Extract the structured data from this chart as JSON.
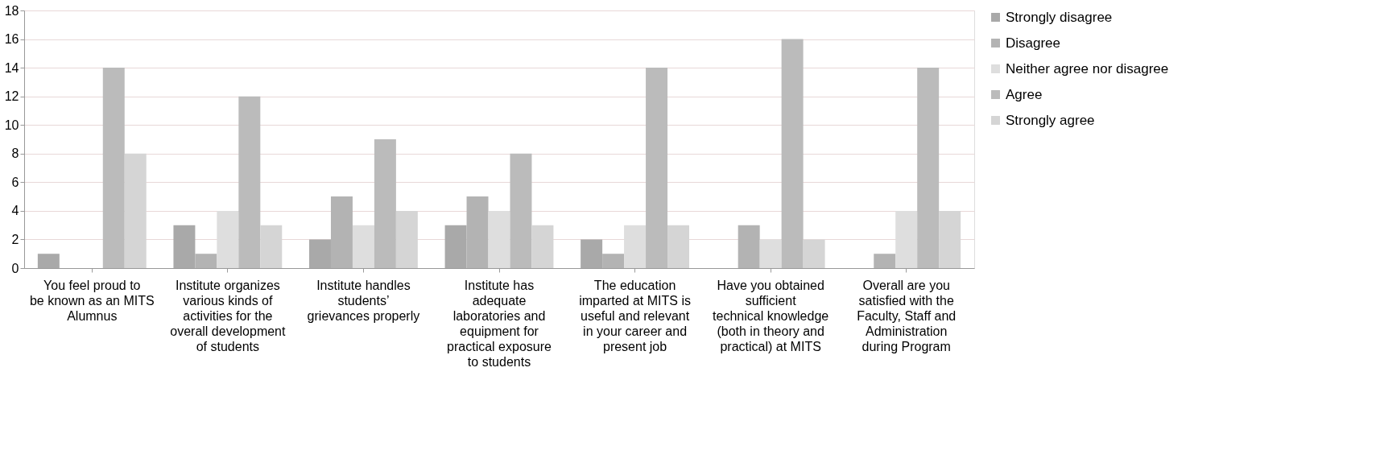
{
  "chart_data": {
    "type": "bar",
    "categories": [
      "You feel proud to be known as an MITS Alumnus",
      "Institute organizes various kinds of activities for the overall development of students",
      "Institute handles students’ grievances properly",
      "Institute has adequate laboratories and equipment for practical exposure to students",
      "The education imparted at MITS is useful and relevant in your career and present job",
      "Have you obtained sufficient technical knowledge (both in theory and practical) at MITS",
      "Overall are you satisfied with the Faculty, Staff and Administration during Program"
    ],
    "series": [
      {
        "name": "Strongly disagree",
        "color": "#a9a9a9",
        "values": [
          1,
          3,
          2,
          3,
          2,
          0,
          0
        ]
      },
      {
        "name": "Disagree",
        "color": "#b3b3b3",
        "values": [
          0,
          1,
          5,
          5,
          1,
          3,
          1
        ]
      },
      {
        "name": "Neither agree nor disagree",
        "color": "#dedede",
        "values": [
          0,
          4,
          3,
          4,
          3,
          2,
          4
        ]
      },
      {
        "name": "Agree",
        "color": "#bbbbbb",
        "values": [
          14,
          12,
          9,
          8,
          14,
          16,
          14
        ]
      },
      {
        "name": "Strongly agree",
        "color": "#d5d5d5",
        "values": [
          8,
          3,
          4,
          3,
          3,
          2,
          4
        ]
      }
    ],
    "ylim": [
      0,
      18
    ],
    "yticks": [
      0,
      2,
      4,
      6,
      8,
      10,
      12,
      14,
      16,
      18
    ],
    "grid": "y",
    "legend": "right"
  }
}
